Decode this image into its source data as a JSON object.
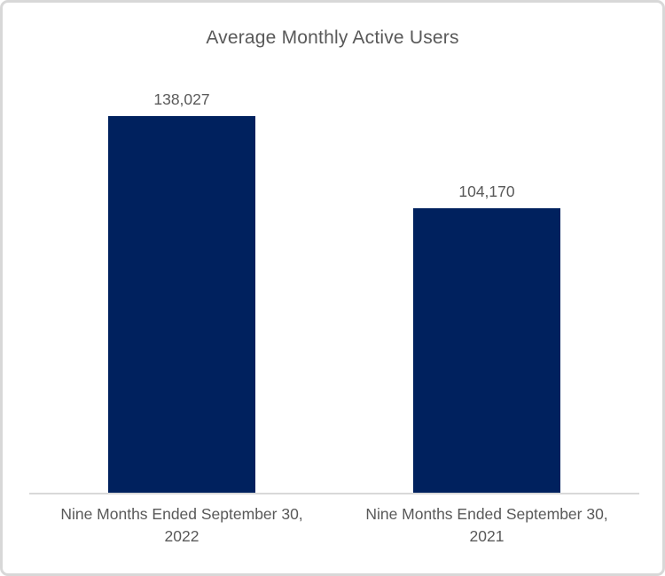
{
  "page": {
    "background": "#ffffff",
    "border_color": "#d8d8d8"
  },
  "chart_data": {
    "type": "bar",
    "title": "Average Monthly Active Users",
    "categories": [
      "Nine Months Ended September 30, 2022",
      "Nine Months Ended September 30, 2021"
    ],
    "category_lines": [
      [
        "Nine Months Ended September 30,",
        "2022"
      ],
      [
        "Nine Months Ended September 30,",
        "2021"
      ]
    ],
    "values": [
      138027,
      104170
    ],
    "value_labels": [
      "138,027",
      "104,170"
    ],
    "xlabel": "",
    "ylabel": "",
    "ylim": [
      0,
      138027
    ],
    "grid": false,
    "legend": false,
    "data_labels_position": "above-bar",
    "bar_color": "#00215E",
    "axis_line_color": "#D9D9D9",
    "text_color": "#595959"
  }
}
